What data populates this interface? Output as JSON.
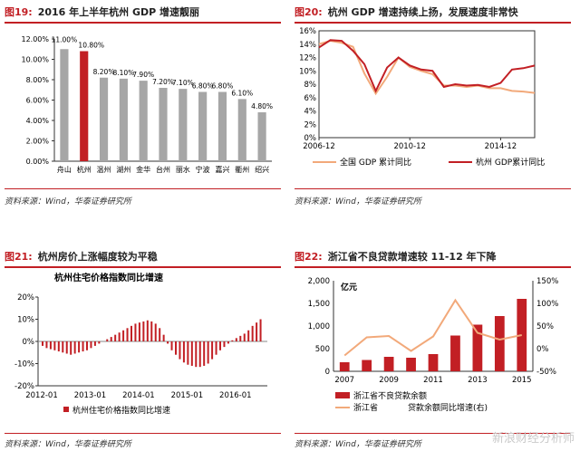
{
  "panels": [
    {
      "num": "图19:",
      "title": "2016 年上半年杭州 GDP 增速靓丽",
      "source": "资料来源：Wind，华泰证券研究所"
    },
    {
      "num": "图20:",
      "title": "杭州 GDP 增速持续上扬，发展速度非常快",
      "source": "资料来源：Wind，华泰证券研究所"
    },
    {
      "num": "图21:",
      "title": "杭州房价上涨幅度较为平稳",
      "source": "资料来源：Wind，华泰证券研究所"
    },
    {
      "num": "图22:",
      "title": "浙江省不良贷款增速较 11-12 年下降",
      "source": "资料来源：Wind，华泰证券研究所"
    }
  ],
  "watermark": "新浪财经分析师",
  "chart_data": [
    {
      "type": "bar",
      "categories": [
        "舟山",
        "杭州",
        "温州",
        "湖州",
        "金华",
        "台州",
        "丽水",
        "宁波",
        "嘉兴",
        "衢州",
        "绍兴"
      ],
      "values": [
        11.0,
        10.8,
        8.2,
        8.1,
        7.9,
        7.2,
        7.1,
        6.8,
        6.8,
        6.1,
        4.8
      ],
      "labels": [
        "11.00%",
        "10.80%",
        "8.20%",
        "8.10%",
        "7.90%",
        "7.20%",
        "7.10%",
        "6.80%",
        "6.80%",
        "6.10%",
        "4.80%"
      ],
      "highlight_index": 1,
      "colors": {
        "default": "#a6a6a6",
        "highlight": "#c21f24"
      },
      "ylim": [
        0,
        12
      ],
      "yticks": [
        "0.00%",
        "2.00%",
        "4.00%",
        "6.00%",
        "8.00%",
        "10.00%",
        "12.00%"
      ]
    },
    {
      "type": "line",
      "x": [
        "2006-12",
        "2007-06",
        "2007-12",
        "2008-06",
        "2008-12",
        "2009-06",
        "2009-12",
        "2010-06",
        "2010-12",
        "2011-06",
        "2011-12",
        "2012-06",
        "2012-12",
        "2013-06",
        "2013-12",
        "2014-06",
        "2014-12",
        "2015-06",
        "2015-12",
        "2016-06"
      ],
      "xticks": [
        "2006-12",
        "2010-12",
        "2014-12"
      ],
      "ylim": [
        0,
        16
      ],
      "yticks": [
        "0%",
        "2%",
        "4%",
        "6%",
        "8%",
        "10%",
        "12%",
        "14%",
        "16%"
      ],
      "series": [
        {
          "name": "全国 GDP 累计同比",
          "color": "#f2a97a",
          "values": [
            14.0,
            14.5,
            14.2,
            13.6,
            9.6,
            6.6,
            9.1,
            12.0,
            10.6,
            10.0,
            9.5,
            7.8,
            7.8,
            7.6,
            7.8,
            7.4,
            7.4,
            7.0,
            6.9,
            6.7
          ]
        },
        {
          "name": "杭州 GDP累计同比",
          "color": "#c21f24",
          "values": [
            13.5,
            14.6,
            14.5,
            13.0,
            11.0,
            7.0,
            10.5,
            12.0,
            10.8,
            10.2,
            10.0,
            7.6,
            8.0,
            7.8,
            7.9,
            7.6,
            8.2,
            10.2,
            10.4,
            10.8
          ]
        }
      ]
    },
    {
      "type": "bar",
      "subtitle": "杭州住宅价格指数同比增速",
      "ylim": [
        -20,
        20
      ],
      "yticks": [
        "-20%",
        "-10%",
        "0%",
        "10%",
        "20%"
      ],
      "xticks": [
        "2012-01",
        "2013-01",
        "2014-01",
        "2015-01",
        "2016-01"
      ],
      "series": [
        {
          "name": "杭州住宅价格指数同比增速",
          "color": "#c21f24",
          "values": [
            -2.0,
            -3.0,
            -3.5,
            -4.0,
            -4.5,
            -5.0,
            -5.5,
            -6.0,
            -5.5,
            -5.0,
            -4.5,
            -4.0,
            -3.0,
            -2.0,
            -1.0,
            0.0,
            1.0,
            2.0,
            3.0,
            4.0,
            5.0,
            6.0,
            7.0,
            8.0,
            8.5,
            9.0,
            9.5,
            9.0,
            8.0,
            6.0,
            3.0,
            -1.0,
            -4.0,
            -6.0,
            -8.0,
            -9.5,
            -10.5,
            -11.0,
            -11.5,
            -11.5,
            -11.0,
            -10.0,
            -8.0,
            -6.0,
            -4.0,
            -2.5,
            -1.0,
            0.5,
            1.5,
            2.5,
            3.5,
            5.0,
            7.0,
            8.5,
            10.0
          ]
        }
      ]
    },
    {
      "type": "bar",
      "subtitle": "亿元",
      "categories": [
        "2007",
        "2008",
        "2009",
        "2010",
        "2011",
        "2012",
        "2013",
        "2014",
        "2015"
      ],
      "xticks": [
        "2007",
        "2009",
        "2011",
        "2013",
        "2015"
      ],
      "ylim_left": [
        0,
        2000
      ],
      "ylim_right": [
        -50,
        150
      ],
      "yticks_left": [
        "0",
        "500",
        "1,000",
        "1,500",
        "2,000"
      ],
      "yticks_right": [
        "-50%",
        "0%",
        "50%",
        "100%",
        "150%"
      ],
      "series": [
        {
          "name": "浙江省不良贷款余额",
          "type": "bar",
          "axis": "left",
          "color": "#c21f24",
          "values": [
            200,
            250,
            320,
            300,
            380,
            790,
            1030,
            1220,
            1600
          ]
        },
        {
          "name": "浙江省不良贷款余额同比增速(右)",
          "type": "line",
          "axis": "right",
          "color": "#f2a97a",
          "values": [
            -15,
            25,
            28,
            -5,
            27,
            107,
            35,
            20,
            30
          ]
        }
      ],
      "legend_visible": [
        "浙江省不良贷款余额",
        "浙江省",
        "贷款余额同比增速(右)"
      ]
    }
  ]
}
